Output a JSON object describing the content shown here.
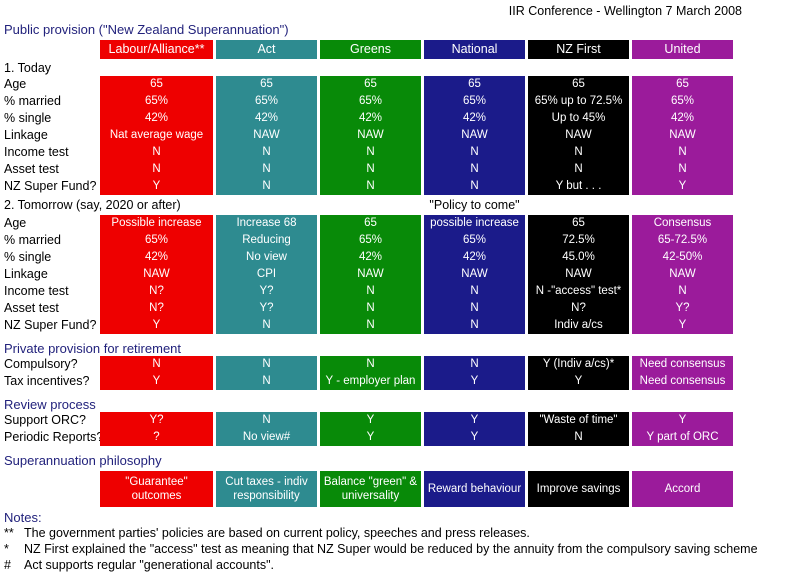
{
  "meta": {
    "conference": "IIR Conference - Wellington 7 March 2008"
  },
  "sections": {
    "public_title": "Public provision (\"New Zealand Superannuation\")",
    "today_title": "1. Today",
    "tomorrow_title": "2. Tomorrow (say, 2020 or after)",
    "tomorrow_note": "\"Policy to come\"",
    "private_title": "Private provision for retirement",
    "review_title": "Review process",
    "philosophy_title": "Superannuation philosophy",
    "notes_title": "Notes:"
  },
  "parties": [
    {
      "name": "Labour/Alliance**",
      "color": "#ee0000"
    },
    {
      "name": "Act",
      "color": "#2e8b90"
    },
    {
      "name": "Greens",
      "color": "#088a08"
    },
    {
      "name": "National",
      "color": "#1b1b8a"
    },
    {
      "name": "NZ First",
      "color": "#000000"
    },
    {
      "name": "United",
      "color": "#9b1b9b"
    }
  ],
  "today": {
    "rows": [
      {
        "label": "Age",
        "values": [
          "65",
          "65",
          "65",
          "65",
          "65",
          "65"
        ]
      },
      {
        "label": "% married",
        "values": [
          "65%",
          "65%",
          "65%",
          "65%",
          "65% up to 72.5%",
          "65%"
        ]
      },
      {
        "label": "% single",
        "values": [
          "42%",
          "42%",
          "42%",
          "42%",
          "Up to 45%",
          "42%"
        ]
      },
      {
        "label": "Linkage",
        "values": [
          "Nat average wage",
          "NAW",
          "NAW",
          "NAW",
          "NAW",
          "NAW"
        ]
      },
      {
        "label": "Income test",
        "values": [
          "N",
          "N",
          "N",
          "N",
          "N",
          "N"
        ]
      },
      {
        "label": "Asset test",
        "values": [
          "N",
          "N",
          "N",
          "N",
          "N",
          "N"
        ]
      },
      {
        "label": "NZ Super Fund?",
        "values": [
          "Y",
          "N",
          "N",
          "N",
          "Y but . . .",
          "Y"
        ]
      }
    ]
  },
  "tomorrow": {
    "rows": [
      {
        "label": "Age",
        "values": [
          "Possible increase",
          "Increase 68",
          "65",
          "possible increase",
          "65",
          "Consensus"
        ]
      },
      {
        "label": "% married",
        "values": [
          "65%",
          "Reducing",
          "65%",
          "65%",
          "72.5%",
          "65-72.5%"
        ]
      },
      {
        "label": "% single",
        "values": [
          "42%",
          "No view",
          "42%",
          "42%",
          "45.0%",
          "42-50%"
        ]
      },
      {
        "label": "Linkage",
        "values": [
          "NAW",
          "CPI",
          "NAW",
          "NAW",
          "NAW",
          "NAW"
        ]
      },
      {
        "label": "Income test",
        "values": [
          "N?",
          "Y?",
          "N",
          "N",
          "N -\"access\" test*",
          "N"
        ]
      },
      {
        "label": "Asset test",
        "values": [
          "N?",
          "Y?",
          "N",
          "N",
          "N?",
          "Y?"
        ]
      },
      {
        "label": "NZ Super Fund?",
        "values": [
          "Y",
          "N",
          "N",
          "N",
          "Indiv a/cs",
          "Y"
        ]
      }
    ]
  },
  "private": {
    "rows": [
      {
        "label": "Compulsory?",
        "values": [
          "N",
          "N",
          "N",
          "N",
          "Y (Indiv a/cs)*",
          "Need consensus"
        ]
      },
      {
        "label": "Tax incentives?",
        "values": [
          "Y",
          "N",
          "Y - employer plan",
          "Y",
          "Y",
          "Need consensus"
        ]
      }
    ]
  },
  "review": {
    "rows": [
      {
        "label": "Support ORC?",
        "values": [
          "Y?",
          "N",
          "Y",
          "Y",
          "\"Waste of time\"",
          "Y"
        ]
      },
      {
        "label": "Periodic Reports?",
        "values": [
          "?",
          "No view#",
          "Y",
          "Y",
          "N",
          "Y part of ORC"
        ]
      }
    ]
  },
  "philosophy": {
    "values": [
      "\"Guarantee\" outcomes",
      "Cut taxes - indiv responsibility",
      "Balance \"green\" & universality",
      "Reward behaviour",
      "Improve savings",
      "Accord"
    ]
  },
  "notes": [
    {
      "marker": "**",
      "text": "The government parties' policies are based on current policy, speeches and press releases."
    },
    {
      "marker": "*",
      "text": "NZ First explained the \"access\" test as meaning that NZ Super would be reduced by the annuity from the compulsory saving scheme"
    },
    {
      "marker": "#",
      "text": "Act supports regular \"generational accounts\"."
    }
  ]
}
